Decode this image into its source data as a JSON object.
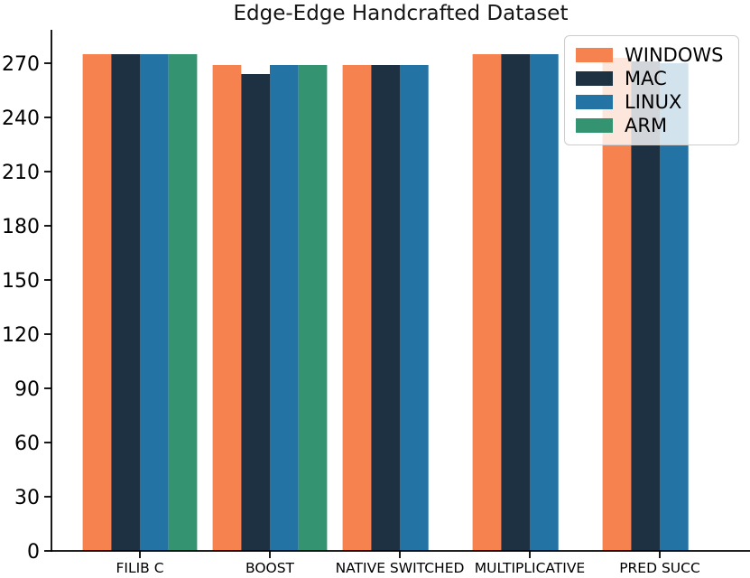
{
  "title": "Edge-Edge Handcrafted Dataset",
  "chart_data": {
    "type": "bar",
    "title": "Edge-Edge Handcrafted Dataset",
    "categories": [
      "FILIB C",
      "BOOST",
      "NATIVE SWITCHED",
      "MULTIPLICATIVE",
      "PRED SUCC"
    ],
    "series": [
      {
        "name": "WINDOWS",
        "color": "#F6824F",
        "values": [
          275,
          269,
          269,
          275,
          273
        ]
      },
      {
        "name": "MAC",
        "color": "#1E3142",
        "values": [
          275,
          264,
          269,
          275,
          271
        ]
      },
      {
        "name": "LINUX",
        "color": "#2473A5",
        "values": [
          275,
          269,
          269,
          275,
          270
        ]
      },
      {
        "name": "ARM",
        "color": "#349370",
        "values": [
          275,
          269,
          null,
          null,
          null
        ]
      }
    ],
    "xlabel": "",
    "ylabel": "",
    "ylim": [
      0,
      288
    ],
    "yticks": [
      0,
      30,
      60,
      90,
      120,
      150,
      180,
      210,
      240,
      270
    ],
    "grid": false,
    "legend_position": "upper right",
    "axis_color": "#000000",
    "tick_label_color": "#000000"
  }
}
